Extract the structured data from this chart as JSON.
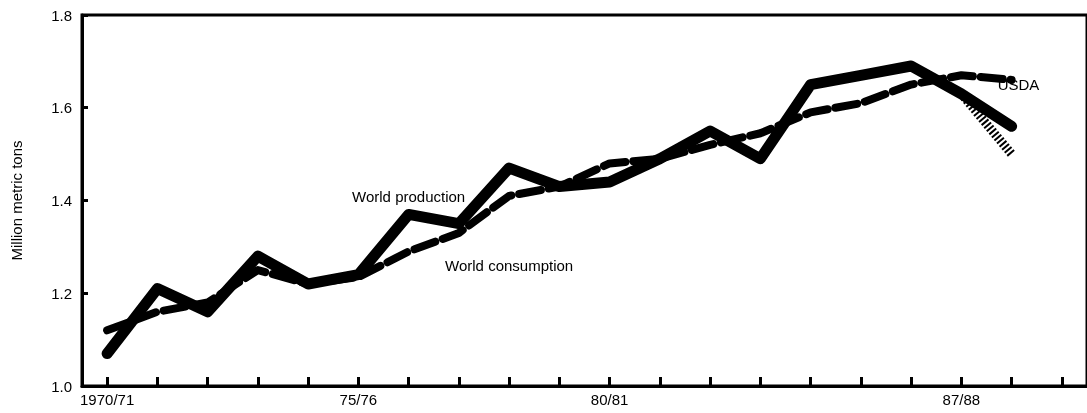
{
  "chart_data": {
    "type": "line",
    "ylabel": "Million metric tons",
    "categories": [
      "1970/71",
      null,
      null,
      null,
      null,
      "75/76",
      null,
      null,
      null,
      null,
      "80/81",
      null,
      null,
      null,
      null,
      null,
      null,
      "87/88",
      null,
      null
    ],
    "series": [
      {
        "name": "World production",
        "color": "#000000",
        "line_style": "solid",
        "values": [
          1.07,
          1.21,
          1.16,
          1.28,
          1.22,
          1.24,
          1.37,
          1.35,
          1.47,
          1.43,
          1.44,
          1.49,
          1.55,
          1.49,
          1.65,
          1.67,
          1.69,
          1.63,
          1.56,
          null
        ]
      },
      {
        "color": "#000000",
        "line_style": "dotted",
        "values": [
          null,
          null,
          null,
          null,
          null,
          null,
          null,
          null,
          null,
          null,
          null,
          null,
          null,
          null,
          null,
          null,
          null,
          1.63,
          1.5,
          null
        ]
      },
      {
        "name": "World consumption",
        "color": "#000000",
        "line_style": "dashed",
        "values": [
          1.12,
          1.16,
          1.18,
          1.25,
          1.22,
          1.235,
          1.29,
          1.33,
          1.41,
          1.43,
          1.48,
          1.49,
          1.52,
          1.545,
          1.59,
          1.61,
          1.65,
          1.67,
          1.66,
          null
        ]
      }
    ],
    "annotations": [
      "USDA"
    ],
    "ylim": [
      1.0,
      1.8
    ],
    "yticks": [
      {
        "value": 1.0,
        "label": "1.0"
      },
      {
        "value": 1.2,
        "label": "1.2"
      },
      {
        "value": 1.4,
        "label": "1.4"
      },
      {
        "value": 1.6,
        "label": "1.6"
      },
      {
        "value": 1.8,
        "label": "1.8"
      }
    ],
    "grid": false,
    "legend": false,
    "marker": "none"
  }
}
